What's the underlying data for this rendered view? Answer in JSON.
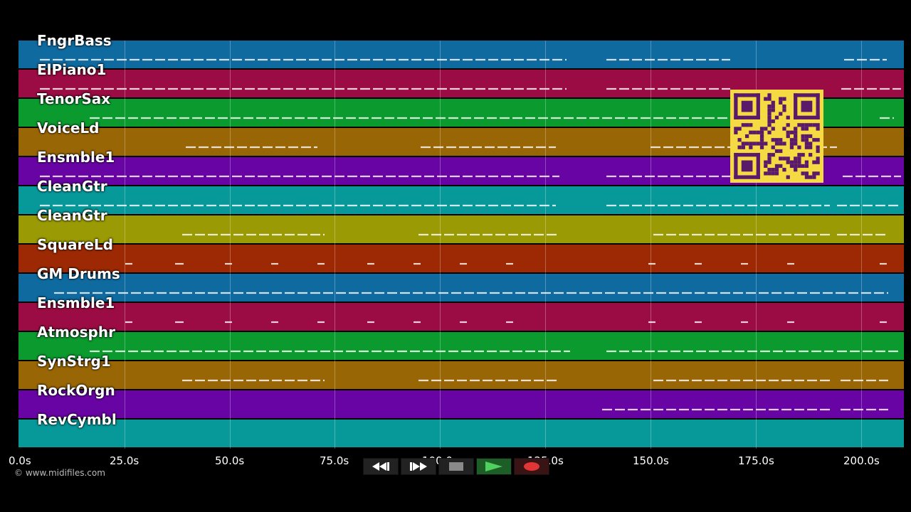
{
  "app": {
    "copyright": "© www.midifiles.com"
  },
  "tracks": [
    {
      "name": "FngrBass",
      "color": "#0f6aa0"
    },
    {
      "name": "ElPiano1",
      "color": "#9b0c44"
    },
    {
      "name": "TenorSax",
      "color": "#0b9a2e"
    },
    {
      "name": "VoiceLd",
      "color": "#996606"
    },
    {
      "name": "Ensmble1",
      "color": "#6904a4"
    },
    {
      "name": "CleanGtr",
      "color": "#07989a"
    },
    {
      "name": "CleanGtr",
      "color": "#9a9a04"
    },
    {
      "name": "SquareLd",
      "color": "#9c2904"
    },
    {
      "name": "GM Drums",
      "color": "#0f6aa0"
    },
    {
      "name": "Ensmble1",
      "color": "#9b0c44"
    },
    {
      "name": "Atmosphr",
      "color": "#0b9a2e"
    },
    {
      "name": "SynStrg1",
      "color": "#996606"
    },
    {
      "name": "RockOrgn",
      "color": "#6904a4"
    },
    {
      "name": "RevCymbl",
      "color": "#07989a"
    }
  ],
  "timeline": {
    "ticks": [
      "0.0s",
      "25.0s",
      "50.0s",
      "75.0s",
      "100.0s",
      "125.0s",
      "150.0s",
      "175.0s",
      "200.0s"
    ]
  },
  "transport": [
    {
      "id": "rewind",
      "icon": "rewind-icon"
    },
    {
      "id": "forward",
      "icon": "fast-forward-icon"
    },
    {
      "id": "stop",
      "icon": "stop-icon"
    },
    {
      "id": "play",
      "icon": "play-icon"
    },
    {
      "id": "record",
      "icon": "record-icon"
    }
  ],
  "colors": {
    "background": "#000000",
    "qr_background": "#f6da44",
    "qr_foreground": "#5a1a6a"
  }
}
